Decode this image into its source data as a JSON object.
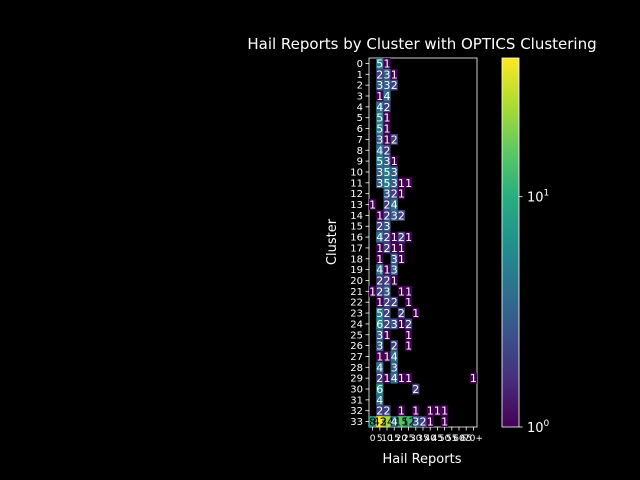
{
  "chart_data": {
    "type": "heatmap",
    "title": "Hail Reports by Cluster with OPTICS Clustering",
    "xlabel": "Hail Reports",
    "ylabel": "Cluster",
    "rows": [
      "0",
      "1",
      "2",
      "3",
      "4",
      "5",
      "6",
      "7",
      "8",
      "9",
      "10",
      "11",
      "12",
      "13",
      "14",
      "15",
      "16",
      "17",
      "18",
      "19",
      "20",
      "21",
      "22",
      "23",
      "24",
      "25",
      "26",
      "27",
      "28",
      "29",
      "30",
      "31",
      "32",
      "33"
    ],
    "columns": [
      "0",
      "5",
      "10",
      "15",
      "20",
      "25",
      "30",
      "35",
      "40",
      "45",
      "50",
      "55",
      "60",
      "65",
      "70+"
    ],
    "x_tick_labels": [
      "0",
      "5",
      "10",
      "15",
      "20",
      "25",
      "30",
      "35",
      "40",
      "45",
      "50",
      "55",
      "60",
      "65",
      "70+"
    ],
    "color_scale": "log",
    "colormap": "viridis",
    "colorbar": {
      "min": 1,
      "max": 40,
      "ticks": [
        {
          "value": 1,
          "base": "10",
          "exp": "0"
        },
        {
          "value": 10,
          "base": "10",
          "exp": "1"
        }
      ]
    },
    "cells": {
      "0": [
        null,
        5,
        1,
        null,
        null,
        null,
        null,
        null,
        null,
        null,
        null,
        null,
        null,
        null,
        null
      ],
      "1": [
        null,
        2,
        3,
        1,
        null,
        null,
        null,
        null,
        null,
        null,
        null,
        null,
        null,
        null,
        null
      ],
      "2": [
        null,
        3,
        3,
        2,
        null,
        null,
        null,
        null,
        null,
        null,
        null,
        null,
        null,
        null,
        null
      ],
      "3": [
        null,
        1,
        4,
        null,
        null,
        null,
        null,
        null,
        null,
        null,
        null,
        null,
        null,
        null,
        null
      ],
      "4": [
        null,
        4,
        2,
        null,
        null,
        null,
        null,
        null,
        null,
        null,
        null,
        null,
        null,
        null,
        null
      ],
      "5": [
        null,
        5,
        1,
        null,
        null,
        null,
        null,
        null,
        null,
        null,
        null,
        null,
        null,
        null,
        null
      ],
      "6": [
        null,
        5,
        1,
        null,
        null,
        null,
        null,
        null,
        null,
        null,
        null,
        null,
        null,
        null,
        null
      ],
      "7": [
        null,
        3,
        1,
        2,
        null,
        null,
        null,
        null,
        null,
        null,
        null,
        null,
        null,
        null,
        null
      ],
      "8": [
        null,
        4,
        2,
        null,
        null,
        null,
        null,
        null,
        null,
        null,
        null,
        null,
        null,
        null,
        null
      ],
      "9": [
        null,
        5,
        3,
        1,
        null,
        null,
        null,
        null,
        null,
        null,
        null,
        null,
        null,
        null,
        null
      ],
      "10": [
        null,
        3,
        5,
        3,
        null,
        null,
        null,
        null,
        null,
        null,
        null,
        null,
        null,
        null,
        null
      ],
      "11": [
        null,
        3,
        5,
        3,
        1,
        1,
        null,
        null,
        null,
        null,
        null,
        null,
        null,
        null,
        null
      ],
      "12": [
        null,
        null,
        3,
        2,
        1,
        null,
        null,
        null,
        null,
        null,
        null,
        null,
        null,
        null,
        null
      ],
      "13": [
        1,
        null,
        2,
        4,
        null,
        null,
        null,
        null,
        null,
        null,
        null,
        null,
        null,
        null,
        null
      ],
      "14": [
        null,
        1,
        2,
        3,
        2,
        null,
        null,
        null,
        null,
        null,
        null,
        null,
        null,
        null,
        null
      ],
      "15": [
        null,
        2,
        3,
        null,
        null,
        null,
        null,
        null,
        null,
        null,
        null,
        null,
        null,
        null,
        null
      ],
      "16": [
        null,
        4,
        2,
        1,
        2,
        1,
        null,
        null,
        null,
        null,
        null,
        null,
        null,
        null,
        null
      ],
      "17": [
        null,
        1,
        2,
        1,
        1,
        null,
        null,
        null,
        null,
        null,
        null,
        null,
        null,
        null,
        null
      ],
      "18": [
        null,
        1,
        null,
        3,
        1,
        null,
        null,
        null,
        null,
        null,
        null,
        null,
        null,
        null,
        null
      ],
      "19": [
        null,
        4,
        1,
        3,
        null,
        null,
        null,
        null,
        null,
        null,
        null,
        null,
        null,
        null,
        null
      ],
      "20": [
        null,
        2,
        2,
        1,
        null,
        null,
        null,
        null,
        null,
        null,
        null,
        null,
        null,
        null,
        null
      ],
      "21": [
        1,
        2,
        3,
        null,
        1,
        1,
        null,
        null,
        null,
        null,
        null,
        null,
        null,
        null,
        null
      ],
      "22": [
        null,
        1,
        2,
        2,
        null,
        1,
        null,
        null,
        null,
        null,
        null,
        null,
        null,
        null,
        null
      ],
      "23": [
        null,
        5,
        2,
        null,
        2,
        null,
        1,
        null,
        null,
        null,
        null,
        null,
        null,
        null,
        null
      ],
      "24": [
        null,
        6,
        2,
        3,
        1,
        2,
        null,
        null,
        null,
        null,
        null,
        null,
        null,
        null,
        null
      ],
      "25": [
        null,
        3,
        1,
        null,
        null,
        1,
        null,
        null,
        null,
        null,
        null,
        null,
        null,
        null,
        null
      ],
      "26": [
        null,
        3,
        null,
        2,
        null,
        1,
        null,
        null,
        null,
        null,
        null,
        null,
        null,
        null,
        null
      ],
      "27": [
        null,
        1,
        1,
        4,
        null,
        null,
        null,
        null,
        null,
        null,
        null,
        null,
        null,
        null,
        null
      ],
      "28": [
        null,
        4,
        null,
        3,
        null,
        null,
        null,
        null,
        null,
        null,
        null,
        null,
        null,
        null,
        null
      ],
      "29": [
        null,
        2,
        1,
        4,
        1,
        1,
        null,
        null,
        null,
        null,
        null,
        null,
        null,
        null,
        1
      ],
      "30": [
        null,
        6,
        null,
        null,
        null,
        null,
        2,
        null,
        null,
        null,
        null,
        null,
        null,
        null,
        null
      ],
      "31": [
        null,
        4,
        null,
        null,
        null,
        null,
        null,
        null,
        null,
        null,
        null,
        null,
        null,
        null,
        null
      ],
      "32": [
        null,
        2,
        2,
        null,
        1,
        null,
        1,
        null,
        1,
        1,
        1,
        null,
        null,
        null,
        null
      ],
      "33": [
        8,
        43,
        24,
        4,
        15,
        12,
        3,
        2,
        1,
        null,
        1,
        null,
        null,
        null,
        null
      ]
    }
  }
}
